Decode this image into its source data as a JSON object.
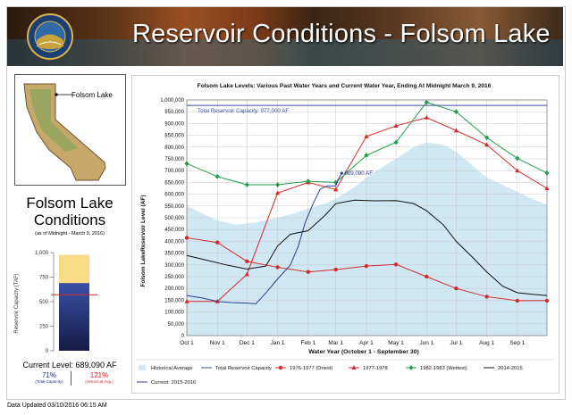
{
  "banner": {
    "title": "Reservoir Conditions - Folsom Lake"
  },
  "map": {
    "label": "Folsom Lake"
  },
  "conditions": {
    "title_line1": "Folsom Lake",
    "title_line2": "Conditions",
    "as_of": "(as of Midnight - March 9, 2016)",
    "axis_label": "Reservoir Capacity (TAF)",
    "ticks": [
      "1,000",
      "750",
      "500",
      "250",
      "0"
    ],
    "current_level": "Current Level: 689,090 AF",
    "pct_capacity": "71%",
    "pct_capacity_label": "(Total Capacity)",
    "pct_hist": "121%",
    "pct_hist_label": "(Historical Avg.)",
    "current_taf": 689.09,
    "capacity_taf": 977,
    "hist_avg_taf": 570,
    "colors": {
      "full": "#f7dc85",
      "current": "#2a3d8f",
      "hist_line": "#d42a2a"
    }
  },
  "chart_data": {
    "type": "line",
    "title": "Folsom Lake Levels: Various Past Water Years and Current Water Year, Ending At Midnight March 9, 2016",
    "xlabel": "Water Year (October 1 - September 30)",
    "ylabel": "Folsom LakeReservoir Level (AF)",
    "ylim": [
      0,
      1000000
    ],
    "yticks": [
      0,
      50000,
      100000,
      150000,
      200000,
      250000,
      300000,
      350000,
      400000,
      450000,
      500000,
      550000,
      600000,
      650000,
      700000,
      750000,
      800000,
      850000,
      900000,
      950000,
      1000000
    ],
    "ytick_labels": [
      "0",
      "50,000",
      "100,000",
      "150,000",
      "200,000",
      "250,000",
      "300,000",
      "350,000",
      "400,000",
      "450,000",
      "500,000",
      "550,000",
      "600,000",
      "650,000",
      "700,000",
      "750,000",
      "800,000",
      "850,000",
      "900,000",
      "950,000",
      "1,000,000"
    ],
    "categories": [
      "Oct 1",
      "Nov 1",
      "Dec 1",
      "Jan 1",
      "Feb 1",
      "Mar 1",
      "Apr 1",
      "May 1",
      "Jun 1",
      "Jul 1",
      "Aug 1",
      "Sep 1"
    ],
    "x_days": [
      0,
      31,
      61,
      92,
      123,
      151,
      182,
      212,
      243,
      273,
      304,
      335
    ],
    "x_max": 365,
    "grid": true,
    "capacity": {
      "name": "Total Reservoir Capacity",
      "value": 977000,
      "label": "Total Reservoir Capacity: 977,000 AF",
      "color": "#3b4f9e"
    },
    "historical_average": {
      "name": "Historical Average",
      "color": "#cfe8f3",
      "points": [
        [
          0,
          550000
        ],
        [
          15,
          520000
        ],
        [
          30,
          490000
        ],
        [
          50,
          470000
        ],
        [
          70,
          480000
        ],
        [
          92,
          500000
        ],
        [
          110,
          520000
        ],
        [
          123,
          540000
        ],
        [
          140,
          560000
        ],
        [
          151,
          580000
        ],
        [
          170,
          630000
        ],
        [
          182,
          670000
        ],
        [
          200,
          720000
        ],
        [
          212,
          750000
        ],
        [
          230,
          800000
        ],
        [
          243,
          820000
        ],
        [
          260,
          810000
        ],
        [
          273,
          780000
        ],
        [
          290,
          720000
        ],
        [
          304,
          670000
        ],
        [
          320,
          640000
        ],
        [
          335,
          610000
        ],
        [
          350,
          580000
        ],
        [
          365,
          555000
        ]
      ]
    },
    "series": [
      {
        "name": "1976-1977 (Driest)",
        "color": "#d42a2a",
        "marker": "circle",
        "points": [
          [
            0,
            415000
          ],
          [
            31,
            395000
          ],
          [
            61,
            315000
          ],
          [
            92,
            290000
          ],
          [
            123,
            270000
          ],
          [
            151,
            280000
          ],
          [
            182,
            295000
          ],
          [
            212,
            302000
          ],
          [
            243,
            250000
          ],
          [
            273,
            200000
          ],
          [
            304,
            165000
          ],
          [
            335,
            148000
          ],
          [
            365,
            148000
          ]
        ]
      },
      {
        "name": "1977-1978",
        "color": "#d42a2a",
        "marker": "triangle",
        "points": [
          [
            0,
            145000
          ],
          [
            31,
            145000
          ],
          [
            61,
            260000
          ],
          [
            92,
            605000
          ],
          [
            123,
            650000
          ],
          [
            151,
            620000
          ],
          [
            182,
            845000
          ],
          [
            212,
            890000
          ],
          [
            243,
            925000
          ],
          [
            273,
            870000
          ],
          [
            304,
            810000
          ],
          [
            335,
            700000
          ],
          [
            365,
            625000
          ]
        ]
      },
      {
        "name": "1982-1983 (Wettest)",
        "color": "#1f9e4a",
        "marker": "diamond",
        "points": [
          [
            0,
            730000
          ],
          [
            31,
            675000
          ],
          [
            61,
            640000
          ],
          [
            92,
            640000
          ],
          [
            123,
            655000
          ],
          [
            151,
            650000
          ],
          [
            182,
            765000
          ],
          [
            212,
            820000
          ],
          [
            243,
            990000
          ],
          [
            273,
            950000
          ],
          [
            304,
            840000
          ],
          [
            335,
            752000
          ],
          [
            365,
            690000
          ]
        ]
      },
      {
        "name": "2014-2015",
        "color": "#111111",
        "marker": "none",
        "points": [
          [
            0,
            340000
          ],
          [
            20,
            320000
          ],
          [
            40,
            300000
          ],
          [
            61,
            282000
          ],
          [
            80,
            295000
          ],
          [
            92,
            380000
          ],
          [
            105,
            430000
          ],
          [
            123,
            445000
          ],
          [
            140,
            510000
          ],
          [
            151,
            560000
          ],
          [
            170,
            575000
          ],
          [
            190,
            572000
          ],
          [
            212,
            573000
          ],
          [
            230,
            560000
          ],
          [
            243,
            530000
          ],
          [
            260,
            470000
          ],
          [
            273,
            400000
          ],
          [
            290,
            330000
          ],
          [
            304,
            270000
          ],
          [
            320,
            210000
          ],
          [
            335,
            182000
          ],
          [
            350,
            175000
          ],
          [
            365,
            170000
          ]
        ]
      },
      {
        "name": "Current: 2015-2016",
        "color": "#2a3d8f",
        "marker": "none",
        "points": [
          [
            0,
            170000
          ],
          [
            15,
            160000
          ],
          [
            31,
            145000
          ],
          [
            45,
            140000
          ],
          [
            61,
            138000
          ],
          [
            70,
            135000
          ],
          [
            80,
            180000
          ],
          [
            92,
            240000
          ],
          [
            105,
            300000
          ],
          [
            113,
            380000
          ],
          [
            120,
            480000
          ],
          [
            128,
            560000
          ],
          [
            135,
            620000
          ],
          [
            142,
            635000
          ],
          [
            151,
            635000
          ],
          [
            153,
            660000
          ],
          [
            157,
            689090
          ]
        ]
      }
    ],
    "annotation": {
      "text": "689,090 AF",
      "x": 157,
      "y": 689090
    },
    "legend_position": "bottom",
    "legend": [
      "Historical Average",
      "Total Reservoir Capacity",
      "1976-1977 (Driest)",
      "1977-1978",
      "1982-1983 (Wettest)",
      "2014-2015",
      "Current: 2015-2016"
    ]
  },
  "footer": {
    "updated": "Data Updated 03/10/2016 06:15 AM"
  }
}
